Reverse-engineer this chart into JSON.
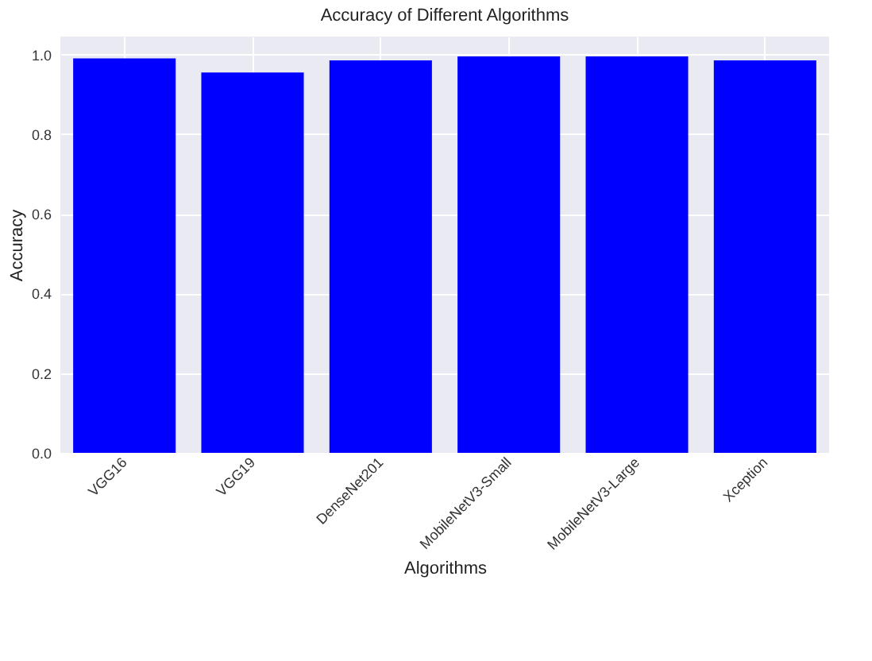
{
  "chart_data": {
    "type": "bar",
    "title": "Accuracy of Different Algorithms",
    "xlabel": "Algorithms",
    "ylabel": "Accuracy",
    "categories": [
      "VGG16",
      "VGG19",
      "DenseNet201",
      "MobileNetV3-Small",
      "MobileNetV3-Large",
      "Xception"
    ],
    "values": [
      0.99,
      0.955,
      0.985,
      0.995,
      0.995,
      0.985
    ],
    "color": "#0000ff",
    "ylim": [
      0,
      1.045
    ],
    "yticks": [
      {
        "value": 0,
        "label": "0.0"
      },
      {
        "value": 0.2,
        "label": "0.2"
      },
      {
        "value": 0.4,
        "label": "0.4"
      },
      {
        "value": 0.6,
        "label": "0.6"
      },
      {
        "value": 0.8,
        "label": "0.8"
      },
      {
        "value": 1,
        "label": "1.0"
      }
    ],
    "grid": true
  }
}
